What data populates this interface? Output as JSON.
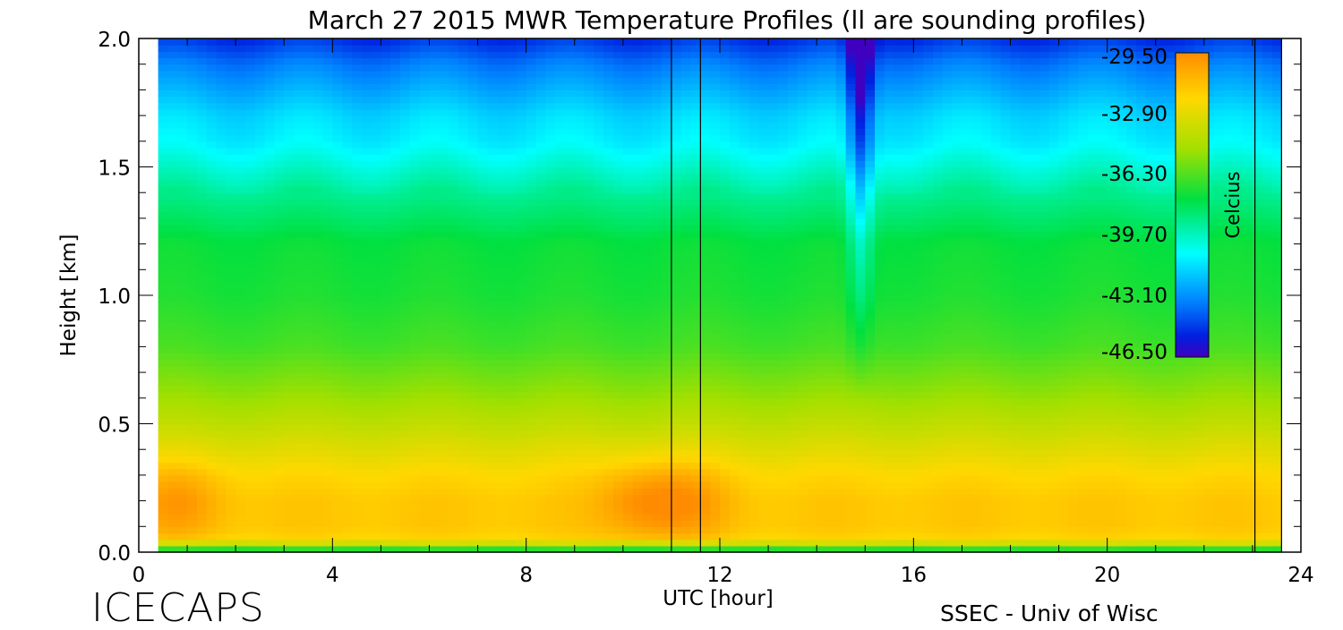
{
  "chart_data": {
    "type": "heatmap",
    "title": "March 27 2015 MWR Temperature Profiles (ll are sounding profiles)",
    "xlabel": "UTC [hour]",
    "ylabel": "Height [km]",
    "xlim": [
      0,
      24
    ],
    "ylim": [
      0,
      2.0
    ],
    "x_ticks": [
      "0",
      "4",
      "8",
      "12",
      "16",
      "20",
      "24"
    ],
    "y_ticks": [
      "0.0",
      "0.5",
      "1.0",
      "1.5",
      "2.0"
    ],
    "x_tick_values": [
      0,
      4,
      8,
      12,
      16,
      20,
      24
    ],
    "y_tick_values": [
      0,
      0.5,
      1.0,
      1.5,
      2.0
    ],
    "data_xlim": [
      0.4,
      23.6
    ],
    "colorbar": {
      "label": "Celcius",
      "ticks": [
        "-29.50",
        "-32.90",
        "-36.30",
        "-39.70",
        "-43.10",
        "-46.50"
      ],
      "min": -46.5,
      "max": -29.5
    },
    "sounding_profiles": [
      {
        "start": 11.0,
        "end": 11.6
      },
      {
        "start": 23.05,
        "end": 23.6
      }
    ],
    "profile_pattern": {
      "heights_km": [
        0,
        0.02,
        0.05,
        0.1,
        0.2,
        0.3,
        0.4,
        0.5,
        0.6,
        0.8,
        1.0,
        1.2,
        1.4,
        1.5,
        1.6,
        1.7,
        1.8,
        1.9,
        2.0
      ],
      "temperature_c": [
        -40,
        -35,
        -32,
        -31.5,
        -31.5,
        -32,
        -33,
        -34,
        -35,
        -36.5,
        -37.2,
        -37.5,
        -39,
        -40,
        -41,
        -41.5,
        -42.5,
        -43.5,
        -45
      ],
      "warm_bulges_utc": [
        0.8,
        10.3,
        11.3
      ],
      "cold_dip_utc": 14.9
    }
  },
  "footer": {
    "left_brand": "ICECAPS",
    "right_brand": "SSEC - Univ of Wisc"
  }
}
